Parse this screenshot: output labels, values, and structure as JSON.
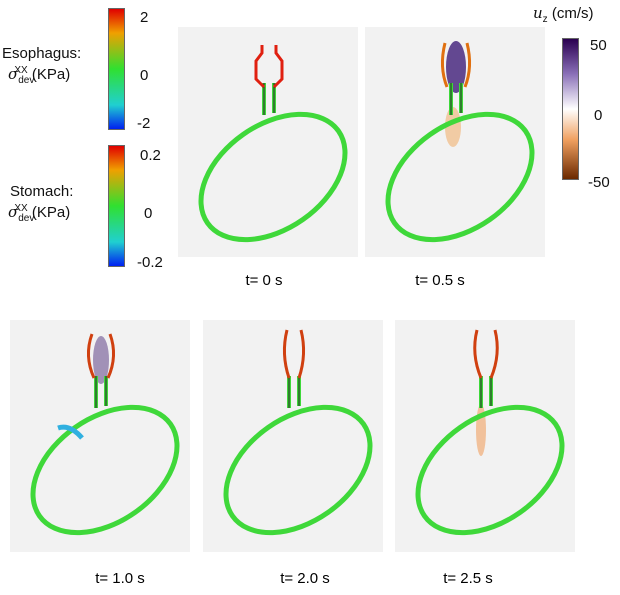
{
  "colorbars": [
    {
      "title": "Esophagus:",
      "symbol": "σ",
      "superscript": "XX",
      "subscript": "dev",
      "unit": "(KPa)",
      "ticks": [
        "2",
        "0",
        "-2"
      ]
    },
    {
      "title": "Stomach:",
      "symbol": "σ",
      "superscript": "XX",
      "subscript": "dev",
      "unit": "(KPa)",
      "ticks": [
        "0.2",
        "0",
        "-0.2"
      ]
    },
    {
      "symbol": "u",
      "subscript": "z",
      "unit": "(cm/s)",
      "ticks": [
        "50",
        "0",
        "-50"
      ]
    }
  ],
  "panels": [
    {
      "caption": "t= 0 s"
    },
    {
      "caption": "t= 0.5 s"
    },
    {
      "caption": "t= 1.0 s"
    },
    {
      "caption": "t= 2.0 s"
    },
    {
      "caption": "t= 2.5 s"
    }
  ]
}
